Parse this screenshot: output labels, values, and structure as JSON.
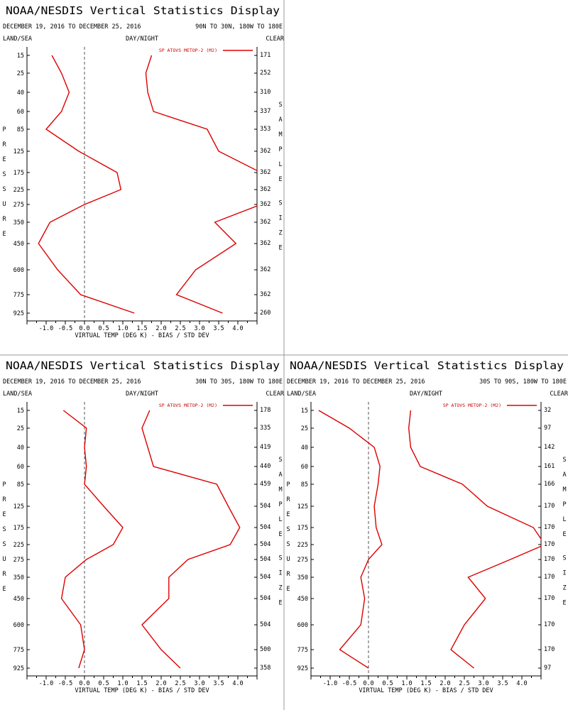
{
  "chart_data": [
    {
      "type": "line",
      "title": "NOAA/NESDIS Vertical Statistics Display",
      "date_range": "DECEMBER 19, 2016 TO DECEMBER 25, 2016",
      "region": "90N TO 30N, 180W TO 180E",
      "top_left_label": "LAND/SEA",
      "top_center_label": "DAY/NIGHT",
      "top_right_label": "CLEAR",
      "ylabel": "PRESSURE",
      "ylabel_right": "SAMPLE SIZE",
      "xlabel": "VIRTUAL TEMP (DEG K) - BIAS / STD DEV",
      "xlim": [
        -1.5,
        4.5
      ],
      "xticks": [
        "-1.0",
        "-0.5",
        "0.0",
        "0.5",
        "1.0",
        "1.5",
        "2.0",
        "2.5",
        "3.0",
        "3.5",
        "4.0"
      ],
      "pressure_levels": [
        "15",
        "25",
        "40",
        "60",
        "85",
        "125",
        "175",
        "225",
        "275",
        "350",
        "450",
        "600",
        "775",
        "925"
      ],
      "sample_size": [
        "171",
        "252",
        "310",
        "337",
        "353",
        "362",
        "362",
        "362",
        "362",
        "362",
        "362",
        "362",
        "362",
        "260"
      ],
      "legend": "SP ATOVS METOP-2 (M2)",
      "series": [
        {
          "role": "bias",
          "values": [
            -0.85,
            -0.6,
            -0.4,
            -0.6,
            -1.0,
            -0.15,
            0.85,
            0.95,
            0.0,
            -0.9,
            -1.2,
            -0.7,
            -0.1,
            1.3
          ]
        },
        {
          "role": "stddev",
          "values": [
            1.75,
            1.6,
            1.65,
            1.8,
            3.2,
            3.5,
            4.6,
            4.6,
            4.6,
            3.4,
            3.95,
            2.9,
            2.4,
            3.6
          ]
        }
      ]
    },
    {
      "type": "line",
      "title": "NOAA/NESDIS Vertical Statistics Display",
      "date_range": "DECEMBER 19, 2016 TO DECEMBER 25, 2016",
      "region": "30N TO 30S, 180W TO 180E",
      "top_left_label": "LAND/SEA",
      "top_center_label": "DAY/NIGHT",
      "top_right_label": "CLEAR",
      "ylabel": "PRESSURE",
      "ylabel_right": "SAMPLE SIZE",
      "xlabel": "VIRTUAL TEMP (DEG K) - BIAS / STD DEV",
      "xlim": [
        -1.5,
        4.5
      ],
      "xticks": [
        "-1.0",
        "-0.5",
        "0.0",
        "0.5",
        "1.0",
        "1.5",
        "2.0",
        "2.5",
        "3.0",
        "3.5",
        "4.0"
      ],
      "pressure_levels": [
        "15",
        "25",
        "40",
        "60",
        "85",
        "125",
        "175",
        "225",
        "275",
        "350",
        "450",
        "600",
        "775",
        "925"
      ],
      "sample_size": [
        "178",
        "335",
        "419",
        "440",
        "459",
        "504",
        "504",
        "504",
        "504",
        "504",
        "504",
        "504",
        "500",
        "358"
      ],
      "legend": "SP ATOVS METOP-2 (M2)",
      "series": [
        {
          "role": "bias",
          "values": [
            -0.55,
            0.05,
            0.0,
            0.05,
            0.0,
            0.5,
            1.0,
            0.75,
            0.05,
            -0.5,
            -0.6,
            -0.1,
            0.0,
            -0.15
          ]
        },
        {
          "role": "stddev",
          "values": [
            1.7,
            1.5,
            1.65,
            1.8,
            3.45,
            3.75,
            4.05,
            3.8,
            2.7,
            2.2,
            2.2,
            1.5,
            2.0,
            2.5
          ]
        }
      ]
    },
    {
      "type": "line",
      "title": "NOAA/NESDIS Vertical Statistics Display",
      "date_range": "DECEMBER 19, 2016 TO DECEMBER 25, 2016",
      "region": "30S TO 90S, 180W TO 180E",
      "top_left_label": "LAND/SEA",
      "top_center_label": "DAY/NIGHT",
      "top_right_label": "CLEAR",
      "ylabel": "PRESSURE",
      "ylabel_right": "SAMPLE SIZE",
      "xlabel": "VIRTUAL TEMP (DEG K) - BIAS / STD DEV",
      "xlim": [
        -1.5,
        4.5
      ],
      "xticks": [
        "-1.0",
        "-0.5",
        "0.0",
        "0.5",
        "1.0",
        "1.5",
        "2.0",
        "2.5",
        "3.0",
        "3.5",
        "4.0"
      ],
      "pressure_levels": [
        "15",
        "25",
        "40",
        "60",
        "85",
        "125",
        "175",
        "225",
        "275",
        "350",
        "450",
        "600",
        "775",
        "925"
      ],
      "sample_size": [
        "32",
        "97",
        "142",
        "161",
        "166",
        "170",
        "170",
        "170",
        "170",
        "170",
        "170",
        "170",
        "170",
        "97"
      ],
      "legend": "SP ATOVS METOP-2 (M2)",
      "series": [
        {
          "role": "bias",
          "values": [
            -1.3,
            -0.5,
            0.15,
            0.3,
            0.25,
            0.15,
            0.2,
            0.35,
            0.0,
            -0.2,
            -0.1,
            -0.2,
            -0.75,
            0.0
          ]
        },
        {
          "role": "stddev",
          "values": [
            1.1,
            1.05,
            1.1,
            1.35,
            2.45,
            3.1,
            4.3,
            4.6,
            3.7,
            2.6,
            3.05,
            2.5,
            2.15,
            2.75
          ]
        }
      ]
    }
  ]
}
